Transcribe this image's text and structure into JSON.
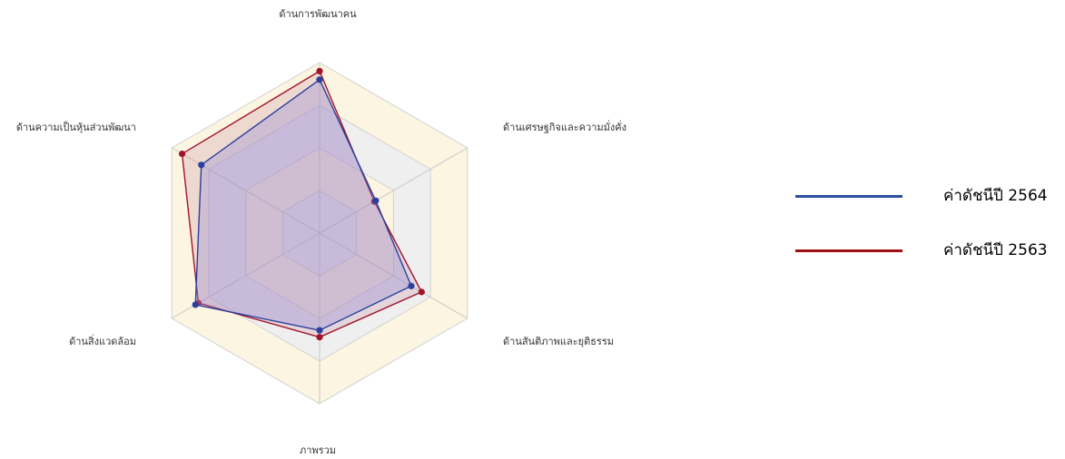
{
  "chart_data": {
    "type": "radar",
    "axes": [
      "ด้านการพัฒนาคน",
      "ด้านเศรษฐกิจและความมั่งคั่ง",
      "ด้านสันติภาพและยุติธรรม",
      "ภาพรวม",
      "ด้านสิ่งแวดล้อม",
      "ด้านความเป็นหุ้นส่วนพัฒนา"
    ],
    "range": [
      0,
      100
    ],
    "rings": [
      0,
      25,
      50,
      75,
      100
    ],
    "series": [
      {
        "name": "ค่าดัชนีปี 2564",
        "color": "#2a3f9e",
        "values": [
          90,
          38,
          62,
          57,
          84,
          80
        ]
      },
      {
        "name": "ค่าดัชนีปี 2563",
        "color": "#a0142a",
        "values": [
          95,
          37,
          69,
          61,
          82,
          93
        ]
      }
    ],
    "legend_position": "right"
  }
}
